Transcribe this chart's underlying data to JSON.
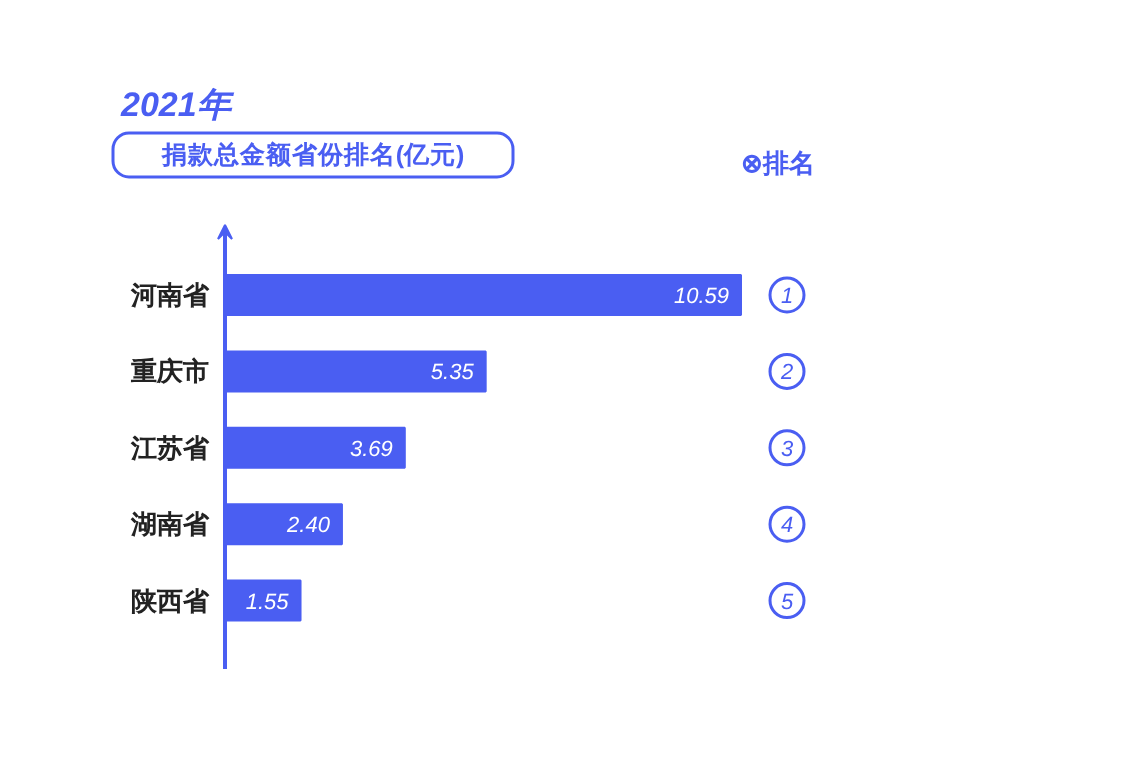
{
  "chart_data": {
    "type": "bar",
    "orientation": "horizontal",
    "title": "2021年",
    "subtitle": "捐款总金额省份排名(亿元)",
    "categories": [
      "河南省",
      "重庆市",
      "江苏省",
      "湖南省",
      "陕西省"
    ],
    "values": [
      10.59,
      5.35,
      3.69,
      2.4,
      1.55
    ],
    "value_labels": [
      "10.59",
      "5.35",
      "3.69",
      "2.40",
      "1.55"
    ],
    "color": "#4a5ef2",
    "legend_title": "⊗排名",
    "annotations": [
      "1",
      "2",
      "3",
      "4",
      "5"
    ]
  }
}
